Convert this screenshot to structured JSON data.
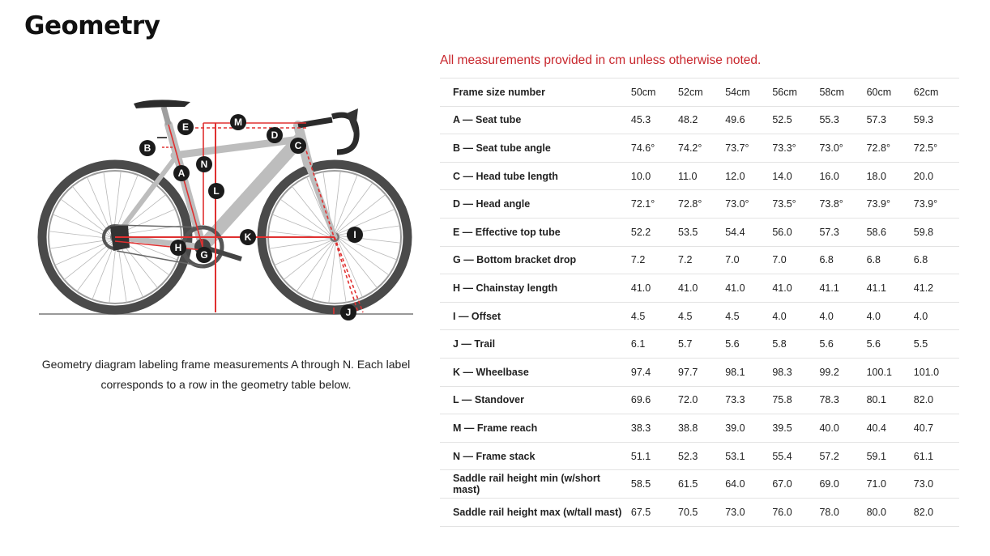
{
  "page_title": "Geometry",
  "note": "All measurements provided in cm unless otherwise noted.",
  "caption": "Geometry diagram labeling frame measurements A through N. Each label corresponds to a row in the geometry table below.",
  "diagram": {
    "labels": [
      "A",
      "B",
      "C",
      "D",
      "E",
      "G",
      "H",
      "I",
      "J",
      "K",
      "L",
      "M",
      "N"
    ],
    "frame_color": "#bdbdbd",
    "line_color": "#e03030",
    "marker_color": "#1b1b1b"
  },
  "table": {
    "header_label": "Frame size number",
    "sizes": [
      "50cm",
      "52cm",
      "54cm",
      "56cm",
      "58cm",
      "60cm",
      "62cm"
    ],
    "rows": [
      {
        "label": "A — Seat tube",
        "values": [
          "45.3",
          "48.2",
          "49.6",
          "52.5",
          "55.3",
          "57.3",
          "59.3"
        ]
      },
      {
        "label": "B — Seat tube angle",
        "values": [
          "74.6°",
          "74.2°",
          "73.7°",
          "73.3°",
          "73.0°",
          "72.8°",
          "72.5°"
        ]
      },
      {
        "label": "C — Head tube length",
        "values": [
          "10.0",
          "11.0",
          "12.0",
          "14.0",
          "16.0",
          "18.0",
          "20.0"
        ]
      },
      {
        "label": "D — Head angle",
        "values": [
          "72.1°",
          "72.8°",
          "73.0°",
          "73.5°",
          "73.8°",
          "73.9°",
          "73.9°"
        ]
      },
      {
        "label": "E — Effective top tube",
        "values": [
          "52.2",
          "53.5",
          "54.4",
          "56.0",
          "57.3",
          "58.6",
          "59.8"
        ]
      },
      {
        "label": "G — Bottom bracket drop",
        "values": [
          "7.2",
          "7.2",
          "7.0",
          "7.0",
          "6.8",
          "6.8",
          "6.8"
        ]
      },
      {
        "label": "H — Chainstay length",
        "values": [
          "41.0",
          "41.0",
          "41.0",
          "41.0",
          "41.1",
          "41.1",
          "41.2"
        ]
      },
      {
        "label": "I — Offset",
        "values": [
          "4.5",
          "4.5",
          "4.5",
          "4.0",
          "4.0",
          "4.0",
          "4.0"
        ]
      },
      {
        "label": "J — Trail",
        "values": [
          "6.1",
          "5.7",
          "5.6",
          "5.8",
          "5.6",
          "5.6",
          "5.5"
        ]
      },
      {
        "label": "K — Wheelbase",
        "values": [
          "97.4",
          "97.7",
          "98.1",
          "98.3",
          "99.2",
          "100.1",
          "101.0"
        ]
      },
      {
        "label": "L — Standover",
        "values": [
          "69.6",
          "72.0",
          "73.3",
          "75.8",
          "78.3",
          "80.1",
          "82.0"
        ]
      },
      {
        "label": "M — Frame reach",
        "values": [
          "38.3",
          "38.8",
          "39.0",
          "39.5",
          "40.0",
          "40.4",
          "40.7"
        ]
      },
      {
        "label": "N — Frame stack",
        "values": [
          "51.1",
          "52.3",
          "53.1",
          "55.4",
          "57.2",
          "59.1",
          "61.1"
        ]
      },
      {
        "label": "Saddle rail height min (w/short mast)",
        "values": [
          "58.5",
          "61.5",
          "64.0",
          "67.0",
          "69.0",
          "71.0",
          "73.0"
        ]
      },
      {
        "label": "Saddle rail height max (w/tall mast)",
        "values": [
          "67.5",
          "70.5",
          "73.0",
          "76.0",
          "78.0",
          "80.0",
          "82.0"
        ]
      }
    ]
  }
}
